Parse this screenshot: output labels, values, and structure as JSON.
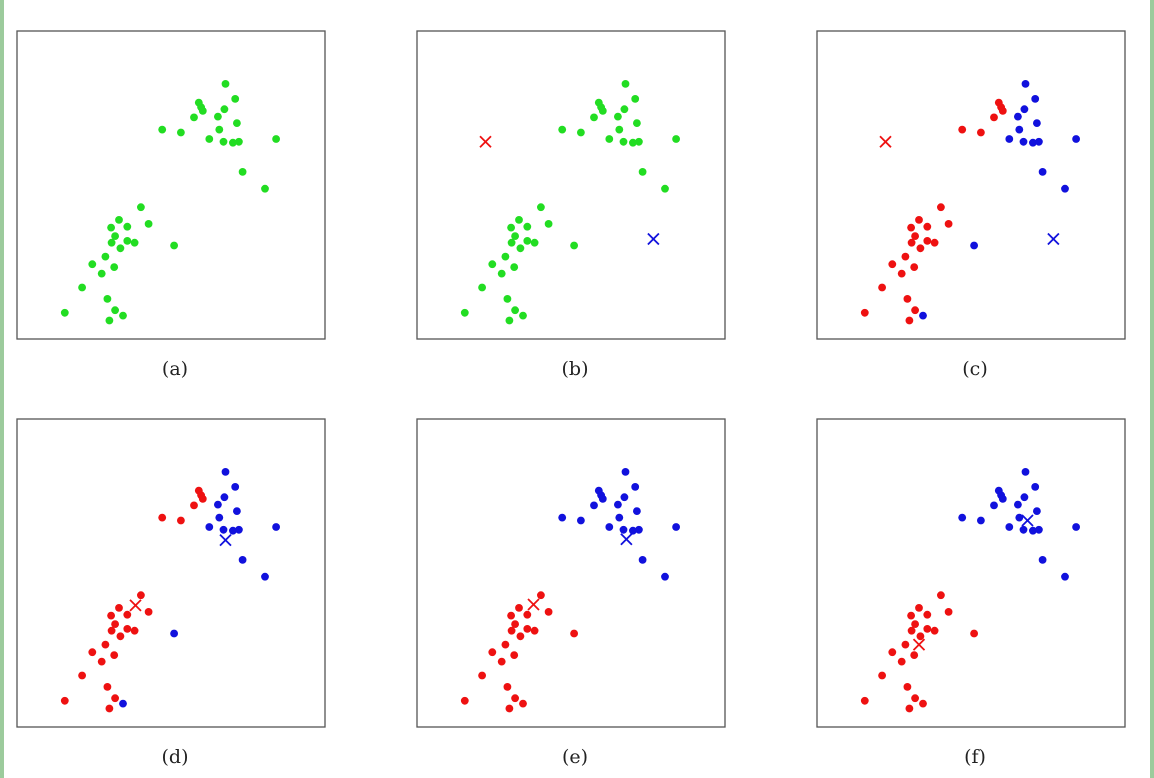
{
  "colors": {
    "green": "#22dd22",
    "red": "#ee1111",
    "blue": "#1111dd",
    "frame": "#555555"
  },
  "chart_data": [
    {
      "type": "scatter",
      "label": "(a)",
      "xlim": [
        0,
        100
      ],
      "ylim": [
        0,
        100
      ],
      "series": [
        {
          "color": "green",
          "points": [
            [
              69.2,
              85.6
            ],
            [
              59.8,
              79.0
            ],
            [
              60.6,
              77.4
            ],
            [
              61.2,
              76.1
            ],
            [
              58.1,
              73.8
            ],
            [
              66.5,
              74.1
            ],
            [
              68.8,
              76.7
            ],
            [
              72.6,
              80.3
            ],
            [
              73.2,
              71.8
            ],
            [
              67.0,
              69.5
            ],
            [
              71.8,
              64.9
            ],
            [
              68.5,
              65.2
            ],
            [
              73.9,
              65.2
            ],
            [
              46.9,
              69.5
            ],
            [
              53.5,
              68.5
            ],
            [
              63.5,
              66.2
            ],
            [
              87.0,
              66.2
            ],
            [
              75.2,
              54.6
            ],
            [
              83.1,
              48.7
            ],
            [
              39.4,
              42.2
            ],
            [
              34.6,
              35.3
            ],
            [
              42.1,
              36.3
            ],
            [
              28.9,
              35.0
            ],
            [
              31.7,
              37.7
            ],
            [
              30.3,
              32.0
            ],
            [
              29.1,
              29.7
            ],
            [
              34.6,
              30.3
            ],
            [
              32.2,
              27.7
            ],
            [
              37.2,
              29.7
            ],
            [
              26.9,
              24.8
            ],
            [
              51.1,
              28.7
            ],
            [
              22.3,
              22.1
            ],
            [
              30.0,
              21.1
            ],
            [
              25.6,
              18.8
            ],
            [
              18.7,
              13.9
            ],
            [
              27.6,
              9.9
            ],
            [
              12.6,
              5.0
            ],
            [
              30.3,
              5.9
            ],
            [
              33.1,
              4.0
            ],
            [
              28.3,
              2.3
            ]
          ]
        }
      ],
      "centroids": []
    },
    {
      "type": "scatter",
      "label": "(b)",
      "xlim": [
        0,
        100
      ],
      "ylim": [
        0,
        100
      ],
      "series": [
        {
          "color": "green",
          "points": [
            [
              69.2,
              85.6
            ],
            [
              59.8,
              79.0
            ],
            [
              60.6,
              77.4
            ],
            [
              61.2,
              76.1
            ],
            [
              58.1,
              73.8
            ],
            [
              66.5,
              74.1
            ],
            [
              68.8,
              76.7
            ],
            [
              72.6,
              80.3
            ],
            [
              73.2,
              71.8
            ],
            [
              67.0,
              69.5
            ],
            [
              71.8,
              64.9
            ],
            [
              68.5,
              65.2
            ],
            [
              73.9,
              65.2
            ],
            [
              46.9,
              69.5
            ],
            [
              53.5,
              68.5
            ],
            [
              63.5,
              66.2
            ],
            [
              87.0,
              66.2
            ],
            [
              75.2,
              54.6
            ],
            [
              83.1,
              48.7
            ],
            [
              39.4,
              42.2
            ],
            [
              34.6,
              35.3
            ],
            [
              42.1,
              36.3
            ],
            [
              28.9,
              35.0
            ],
            [
              31.7,
              37.7
            ],
            [
              30.3,
              32.0
            ],
            [
              29.1,
              29.7
            ],
            [
              34.6,
              30.3
            ],
            [
              32.2,
              27.7
            ],
            [
              37.2,
              29.7
            ],
            [
              26.9,
              24.8
            ],
            [
              51.1,
              28.7
            ],
            [
              22.3,
              22.1
            ],
            [
              30.0,
              21.1
            ],
            [
              25.6,
              18.8
            ],
            [
              18.7,
              13.9
            ],
            [
              27.6,
              9.9
            ],
            [
              12.6,
              5.0
            ],
            [
              30.3,
              5.9
            ],
            [
              33.1,
              4.0
            ],
            [
              28.3,
              2.3
            ]
          ]
        }
      ],
      "centroids": [
        {
          "color": "red",
          "x": 19.9,
          "y": 65.2
        },
        {
          "color": "blue",
          "x": 79.0,
          "y": 31.0
        }
      ]
    },
    {
      "type": "scatter",
      "label": "(c)",
      "xlim": [
        0,
        100
      ],
      "ylim": [
        0,
        100
      ],
      "series": [
        {
          "color": "red",
          "points": [
            [
              59.8,
              79.0
            ],
            [
              60.6,
              77.4
            ],
            [
              61.2,
              76.1
            ],
            [
              58.1,
              73.8
            ],
            [
              46.9,
              69.5
            ],
            [
              53.5,
              68.5
            ],
            [
              39.4,
              42.2
            ],
            [
              34.6,
              35.3
            ],
            [
              42.1,
              36.3
            ],
            [
              28.9,
              35.0
            ],
            [
              31.7,
              37.7
            ],
            [
              30.3,
              32.0
            ],
            [
              29.1,
              29.7
            ],
            [
              34.6,
              30.3
            ],
            [
              32.2,
              27.7
            ],
            [
              37.2,
              29.7
            ],
            [
              26.9,
              24.8
            ],
            [
              22.3,
              22.1
            ],
            [
              30.0,
              21.1
            ],
            [
              25.6,
              18.8
            ],
            [
              18.7,
              13.9
            ],
            [
              27.6,
              9.9
            ],
            [
              12.6,
              5.0
            ],
            [
              30.3,
              5.9
            ],
            [
              28.3,
              2.3
            ]
          ]
        },
        {
          "color": "blue",
          "points": [
            [
              69.2,
              85.6
            ],
            [
              66.5,
              74.1
            ],
            [
              68.8,
              76.7
            ],
            [
              72.6,
              80.3
            ],
            [
              73.2,
              71.8
            ],
            [
              67.0,
              69.5
            ],
            [
              71.8,
              64.9
            ],
            [
              68.5,
              65.2
            ],
            [
              73.9,
              65.2
            ],
            [
              63.5,
              66.2
            ],
            [
              87.0,
              66.2
            ],
            [
              75.2,
              54.6
            ],
            [
              83.1,
              48.7
            ],
            [
              51.1,
              28.7
            ],
            [
              33.1,
              4.0
            ]
          ]
        }
      ],
      "centroids": [
        {
          "color": "red",
          "x": 19.9,
          "y": 65.2
        },
        {
          "color": "blue",
          "x": 79.0,
          "y": 31.0
        }
      ]
    },
    {
      "type": "scatter",
      "label": "(d)",
      "xlim": [
        0,
        100
      ],
      "ylim": [
        0,
        100
      ],
      "series": [
        {
          "color": "red",
          "points": [
            [
              59.8,
              79.0
            ],
            [
              60.6,
              77.4
            ],
            [
              61.2,
              76.1
            ],
            [
              58.1,
              73.8
            ],
            [
              46.9,
              69.5
            ],
            [
              53.5,
              68.5
            ],
            [
              39.4,
              42.2
            ],
            [
              34.6,
              35.3
            ],
            [
              42.1,
              36.3
            ],
            [
              28.9,
              35.0
            ],
            [
              31.7,
              37.7
            ],
            [
              30.3,
              32.0
            ],
            [
              29.1,
              29.7
            ],
            [
              34.6,
              30.3
            ],
            [
              32.2,
              27.7
            ],
            [
              37.2,
              29.7
            ],
            [
              26.9,
              24.8
            ],
            [
              22.3,
              22.1
            ],
            [
              30.0,
              21.1
            ],
            [
              25.6,
              18.8
            ],
            [
              18.7,
              13.9
            ],
            [
              27.6,
              9.9
            ],
            [
              12.6,
              5.0
            ],
            [
              30.3,
              5.9
            ],
            [
              28.3,
              2.3
            ]
          ]
        },
        {
          "color": "blue",
          "points": [
            [
              69.2,
              85.6
            ],
            [
              66.5,
              74.1
            ],
            [
              68.8,
              76.7
            ],
            [
              72.6,
              80.3
            ],
            [
              73.2,
              71.8
            ],
            [
              67.0,
              69.5
            ],
            [
              71.8,
              64.9
            ],
            [
              68.5,
              65.2
            ],
            [
              73.9,
              65.2
            ],
            [
              63.5,
              66.2
            ],
            [
              87.0,
              66.2
            ],
            [
              75.2,
              54.6
            ],
            [
              83.1,
              48.7
            ],
            [
              51.1,
              28.7
            ],
            [
              33.1,
              4.0
            ]
          ]
        }
      ],
      "centroids": [
        {
          "color": "red",
          "x": 37.5,
          "y": 38.6
        },
        {
          "color": "blue",
          "x": 69.2,
          "y": 61.6
        }
      ]
    },
    {
      "type": "scatter",
      "label": "(e)",
      "xlim": [
        0,
        100
      ],
      "ylim": [
        0,
        100
      ],
      "series": [
        {
          "color": "red",
          "points": [
            [
              39.4,
              42.2
            ],
            [
              34.6,
              35.3
            ],
            [
              42.1,
              36.3
            ],
            [
              28.9,
              35.0
            ],
            [
              31.7,
              37.7
            ],
            [
              30.3,
              32.0
            ],
            [
              29.1,
              29.7
            ],
            [
              34.6,
              30.3
            ],
            [
              32.2,
              27.7
            ],
            [
              37.2,
              29.7
            ],
            [
              26.9,
              24.8
            ],
            [
              51.1,
              28.7
            ],
            [
              22.3,
              22.1
            ],
            [
              30.0,
              21.1
            ],
            [
              25.6,
              18.8
            ],
            [
              18.7,
              13.9
            ],
            [
              27.6,
              9.9
            ],
            [
              12.6,
              5.0
            ],
            [
              30.3,
              5.9
            ],
            [
              33.1,
              4.0
            ],
            [
              28.3,
              2.3
            ]
          ]
        },
        {
          "color": "blue",
          "points": [
            [
              69.2,
              85.6
            ],
            [
              59.8,
              79.0
            ],
            [
              60.6,
              77.4
            ],
            [
              61.2,
              76.1
            ],
            [
              58.1,
              73.8
            ],
            [
              66.5,
              74.1
            ],
            [
              68.8,
              76.7
            ],
            [
              72.6,
              80.3
            ],
            [
              73.2,
              71.8
            ],
            [
              67.0,
              69.5
            ],
            [
              71.8,
              64.9
            ],
            [
              68.5,
              65.2
            ],
            [
              73.9,
              65.2
            ],
            [
              46.9,
              69.5
            ],
            [
              53.5,
              68.5
            ],
            [
              63.5,
              66.2
            ],
            [
              87.0,
              66.2
            ],
            [
              75.2,
              54.6
            ],
            [
              83.1,
              48.7
            ]
          ]
        }
      ],
      "centroids": [
        {
          "color": "red",
          "x": 36.8,
          "y": 38.9
        },
        {
          "color": "blue",
          "x": 69.5,
          "y": 61.9
        }
      ]
    },
    {
      "type": "scatter",
      "label": "(f)",
      "xlim": [
        0,
        100
      ],
      "ylim": [
        0,
        100
      ],
      "series": [
        {
          "color": "red",
          "points": [
            [
              39.4,
              42.2
            ],
            [
              34.6,
              35.3
            ],
            [
              42.1,
              36.3
            ],
            [
              28.9,
              35.0
            ],
            [
              31.7,
              37.7
            ],
            [
              30.3,
              32.0
            ],
            [
              29.1,
              29.7
            ],
            [
              34.6,
              30.3
            ],
            [
              32.2,
              27.7
            ],
            [
              37.2,
              29.7
            ],
            [
              26.9,
              24.8
            ],
            [
              51.1,
              28.7
            ],
            [
              22.3,
              22.1
            ],
            [
              30.0,
              21.1
            ],
            [
              25.6,
              18.8
            ],
            [
              18.7,
              13.9
            ],
            [
              27.6,
              9.9
            ],
            [
              12.6,
              5.0
            ],
            [
              30.3,
              5.9
            ],
            [
              33.1,
              4.0
            ],
            [
              28.3,
              2.3
            ]
          ]
        },
        {
          "color": "blue",
          "points": [
            [
              69.2,
              85.6
            ],
            [
              59.8,
              79.0
            ],
            [
              60.6,
              77.4
            ],
            [
              61.2,
              76.1
            ],
            [
              58.1,
              73.8
            ],
            [
              66.5,
              74.1
            ],
            [
              68.8,
              76.7
            ],
            [
              72.6,
              80.3
            ],
            [
              73.2,
              71.8
            ],
            [
              67.0,
              69.5
            ],
            [
              71.8,
              64.9
            ],
            [
              68.5,
              65.2
            ],
            [
              73.9,
              65.2
            ],
            [
              46.9,
              69.5
            ],
            [
              53.5,
              68.5
            ],
            [
              63.5,
              66.2
            ],
            [
              87.0,
              66.2
            ],
            [
              75.2,
              54.6
            ],
            [
              83.1,
              48.7
            ]
          ]
        }
      ],
      "centroids": [
        {
          "color": "red",
          "x": 31.7,
          "y": 24.8
        },
        {
          "color": "blue",
          "x": 69.9,
          "y": 68.5
        }
      ]
    }
  ]
}
